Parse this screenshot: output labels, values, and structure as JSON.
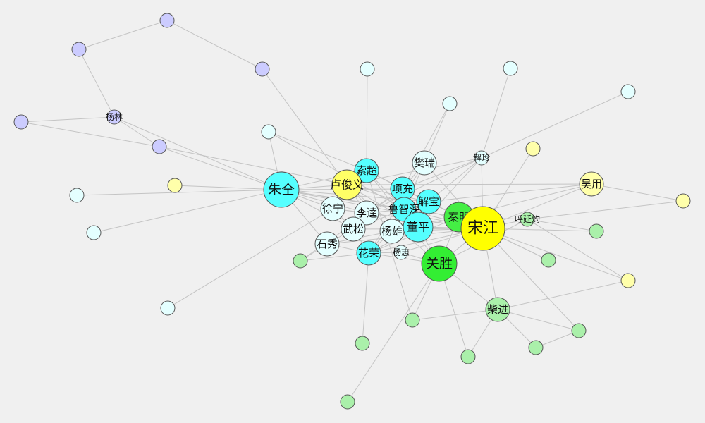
{
  "graph": {
    "palette": {
      "purple": "#ccccff",
      "cyan-light": "#e4ffff",
      "cyan": "#55ffff",
      "yellow-light": "#ffffaa",
      "yellow": "#ffff66",
      "yellow-strong": "#ffff00",
      "green-light": "#aaf0aa",
      "green": "#44ee44",
      "green-strong": "#33ee33"
    },
    "nodes": [
      {
        "id": "p1",
        "label": "",
        "color": "purple",
        "level": 1
      },
      {
        "id": "p2",
        "label": "",
        "color": "purple",
        "level": 1
      },
      {
        "id": "p3",
        "label": "",
        "color": "purple",
        "level": 1
      },
      {
        "id": "p4",
        "label": "",
        "color": "purple",
        "level": 1
      },
      {
        "id": "yanglin",
        "label": "杨林",
        "color": "purple",
        "level": 1
      },
      {
        "id": "p5",
        "label": "",
        "color": "purple",
        "level": 1
      },
      {
        "id": "c1",
        "label": "",
        "color": "cyan-light",
        "level": 1
      },
      {
        "id": "c2",
        "label": "",
        "color": "cyan-light",
        "level": 1
      },
      {
        "id": "c3",
        "label": "",
        "color": "cyan-light",
        "level": 1
      },
      {
        "id": "c4",
        "label": "",
        "color": "cyan-light",
        "level": 1
      },
      {
        "id": "c5",
        "label": "",
        "color": "cyan-light",
        "level": 1
      },
      {
        "id": "c6",
        "label": "",
        "color": "cyan-light",
        "level": 1
      },
      {
        "id": "c7",
        "label": "",
        "color": "cyan-light",
        "level": 1
      },
      {
        "id": "c8",
        "label": "",
        "color": "cyan-light",
        "level": 1
      },
      {
        "id": "y1",
        "label": "",
        "color": "yellow-light",
        "level": 1
      },
      {
        "id": "y2",
        "label": "",
        "color": "yellow-light",
        "level": 1
      },
      {
        "id": "y3",
        "label": "",
        "color": "yellow-light",
        "level": 1
      },
      {
        "id": "y4",
        "label": "",
        "color": "yellow-light",
        "level": 1
      },
      {
        "id": "g1",
        "label": "",
        "color": "green-light",
        "level": 1
      },
      {
        "id": "g2",
        "label": "",
        "color": "green-light",
        "level": 1
      },
      {
        "id": "g3",
        "label": "",
        "color": "green-light",
        "level": 1
      },
      {
        "id": "g4",
        "label": "",
        "color": "green-light",
        "level": 1
      },
      {
        "id": "g5",
        "label": "",
        "color": "green-light",
        "level": 1
      },
      {
        "id": "g6",
        "label": "",
        "color": "green-light",
        "level": 1
      },
      {
        "id": "g7",
        "label": "",
        "color": "green-light",
        "level": 1
      },
      {
        "id": "g8",
        "label": "",
        "color": "green-light",
        "level": 1
      },
      {
        "id": "g9",
        "label": "",
        "color": "green-light",
        "level": 1
      },
      {
        "id": "zhuquan",
        "label": "朱仝",
        "color": "cyan",
        "level": 4
      },
      {
        "id": "lujunyi",
        "label": "卢俊义",
        "color": "yellow",
        "level": 3
      },
      {
        "id": "suochao",
        "label": "索超",
        "color": "cyan",
        "level": 2
      },
      {
        "id": "fanrui",
        "label": "樊瑞",
        "color": "cyan-light",
        "level": 2
      },
      {
        "id": "xiezhen",
        "label": "解珍",
        "color": "cyan-light",
        "level": 1
      },
      {
        "id": "wuyong",
        "label": "吴用",
        "color": "yellow-light",
        "level": 2
      },
      {
        "id": "xiangchong",
        "label": "项充",
        "color": "cyan",
        "level": 2
      },
      {
        "id": "xiebao",
        "label": "解宝",
        "color": "cyan",
        "level": 2
      },
      {
        "id": "xuning",
        "label": "徐宁",
        "color": "cyan-light",
        "level": 2
      },
      {
        "id": "likui",
        "label": "李逵",
        "color": "cyan-light",
        "level": 2
      },
      {
        "id": "luzhishen",
        "label": "鲁智深",
        "color": "cyan",
        "level": 2
      },
      {
        "id": "qinming",
        "label": "秦明",
        "color": "green",
        "level": 3
      },
      {
        "id": "songjiang",
        "label": "宋江",
        "color": "yellow-strong",
        "level": 5
      },
      {
        "id": "huyanzhuo",
        "label": "呼延灼",
        "color": "green-light",
        "level": 1
      },
      {
        "id": "wusong",
        "label": "武松",
        "color": "cyan-light",
        "level": 2
      },
      {
        "id": "yangxiong",
        "label": "杨雄",
        "color": "cyan-light",
        "level": 2
      },
      {
        "id": "dongping",
        "label": "董平",
        "color": "cyan",
        "level": 3
      },
      {
        "id": "shixiu",
        "label": "石秀",
        "color": "cyan-light",
        "level": 2
      },
      {
        "id": "huarong",
        "label": "花荣",
        "color": "cyan",
        "level": 2
      },
      {
        "id": "yangzhi",
        "label": "杨志",
        "color": "cyan-light",
        "level": 1
      },
      {
        "id": "guansheng",
        "label": "关胜",
        "color": "green-strong",
        "level": 4
      },
      {
        "id": "chaijin",
        "label": "柴进",
        "color": "green-light",
        "level": 2
      }
    ],
    "edges": [
      [
        "p1",
        "p2"
      ],
      [
        "p1",
        "p3"
      ],
      [
        "p2",
        "yanglin"
      ],
      [
        "p3",
        "lujunyi"
      ],
      [
        "p4",
        "yanglin"
      ],
      [
        "p4",
        "p5"
      ],
      [
        "yanglin",
        "p5"
      ],
      [
        "yanglin",
        "zhuquan"
      ],
      [
        "p5",
        "zhuquan"
      ],
      [
        "p5",
        "lujunyi"
      ],
      [
        "c1",
        "zhuquan"
      ],
      [
        "c1",
        "luzhishen"
      ],
      [
        "c1",
        "suochao"
      ],
      [
        "c2",
        "suochao"
      ],
      [
        "c3",
        "fanrui"
      ],
      [
        "c3",
        "xiangchong"
      ],
      [
        "c4",
        "xiezhen"
      ],
      [
        "c5",
        "xiezhen"
      ],
      [
        "c6",
        "zhuquan"
      ],
      [
        "c7",
        "zhuquan"
      ],
      [
        "c8",
        "xuning"
      ],
      [
        "y1",
        "zhuquan"
      ],
      [
        "y2",
        "songjiang"
      ],
      [
        "y3",
        "wuyong"
      ],
      [
        "y3",
        "huyanzhuo"
      ],
      [
        "y4",
        "chaijin"
      ],
      [
        "y4",
        "songjiang"
      ],
      [
        "y4",
        "huyanzhuo"
      ],
      [
        "g1",
        "xiangchong"
      ],
      [
        "g1",
        "huarong"
      ],
      [
        "g2",
        "songjiang"
      ],
      [
        "g2",
        "huyanzhuo"
      ],
      [
        "g3",
        "songjiang"
      ],
      [
        "g3",
        "qinming"
      ],
      [
        "g4",
        "suochao"
      ],
      [
        "g4",
        "guansheng"
      ],
      [
        "g4",
        "chaijin"
      ],
      [
        "g5",
        "huarong"
      ],
      [
        "g6",
        "chaijin"
      ],
      [
        "g6",
        "guansheng"
      ],
      [
        "g7",
        "chaijin"
      ],
      [
        "g7",
        "songjiang"
      ],
      [
        "g8",
        "chaijin"
      ],
      [
        "g8",
        "g7"
      ],
      [
        "g9",
        "guansheng"
      ],
      [
        "zhuquan",
        "lujunyi"
      ],
      [
        "zhuquan",
        "suochao"
      ],
      [
        "zhuquan",
        "xuning"
      ],
      [
        "zhuquan",
        "likui"
      ],
      [
        "zhuquan",
        "luzhishen"
      ],
      [
        "zhuquan",
        "xiangchong"
      ],
      [
        "zhuquan",
        "wusong"
      ],
      [
        "zhuquan",
        "shixiu"
      ],
      [
        "zhuquan",
        "xiebao"
      ],
      [
        "zhuquan",
        "songjiang"
      ],
      [
        "zhuquan",
        "qinming"
      ],
      [
        "lujunyi",
        "songjiang"
      ],
      [
        "lujunyi",
        "xiebao"
      ],
      [
        "lujunyi",
        "wuyong"
      ],
      [
        "lujunyi",
        "xiezhen"
      ],
      [
        "lujunyi",
        "likui"
      ],
      [
        "lujunyi",
        "dongping"
      ],
      [
        "lujunyi",
        "guansheng"
      ],
      [
        "lujunyi",
        "yangxiong"
      ],
      [
        "suochao",
        "xiangchong"
      ],
      [
        "suochao",
        "xiebao"
      ],
      [
        "suochao",
        "guansheng"
      ],
      [
        "suochao",
        "luzhishen"
      ],
      [
        "suochao",
        "songjiang"
      ],
      [
        "fanrui",
        "songjiang"
      ],
      [
        "fanrui",
        "xiangchong"
      ],
      [
        "fanrui",
        "huarong"
      ],
      [
        "fanrui",
        "luzhishen"
      ],
      [
        "xiezhen",
        "songjiang"
      ],
      [
        "xiezhen",
        "xiebao"
      ],
      [
        "xiezhen",
        "xiangchong"
      ],
      [
        "xiezhen",
        "dongping"
      ],
      [
        "xiezhen",
        "likui"
      ],
      [
        "wuyong",
        "songjiang"
      ],
      [
        "wuyong",
        "qinming"
      ],
      [
        "wuyong",
        "xiebao"
      ],
      [
        "xiangchong",
        "songjiang"
      ],
      [
        "xiangchong",
        "xiebao"
      ],
      [
        "xiangchong",
        "likui"
      ],
      [
        "xiebao",
        "songjiang"
      ],
      [
        "xiebao",
        "qinming"
      ],
      [
        "xuning",
        "likui"
      ],
      [
        "xuning",
        "wusong"
      ],
      [
        "xuning",
        "songjiang"
      ],
      [
        "likui",
        "luzhishen"
      ],
      [
        "likui",
        "wusong"
      ],
      [
        "likui",
        "songjiang"
      ],
      [
        "luzhishen",
        "wusong"
      ],
      [
        "luzhishen",
        "yangxiong"
      ],
      [
        "luzhishen",
        "songjiang"
      ],
      [
        "luzhishen",
        "dongping"
      ],
      [
        "luzhishen",
        "huarong"
      ],
      [
        "qinming",
        "songjiang"
      ],
      [
        "qinming",
        "huarong"
      ],
      [
        "qinming",
        "guansheng"
      ],
      [
        "qinming",
        "dongping"
      ],
      [
        "qinming",
        "huyanzhuo"
      ],
      [
        "songjiang",
        "huyanzhuo"
      ],
      [
        "songjiang",
        "guansheng"
      ],
      [
        "songjiang",
        "chaijin"
      ],
      [
        "songjiang",
        "huarong"
      ],
      [
        "songjiang",
        "dongping"
      ],
      [
        "songjiang",
        "yangzhi"
      ],
      [
        "songjiang",
        "shixiu"
      ],
      [
        "songjiang",
        "yangxiong"
      ],
      [
        "songjiang",
        "wusong"
      ],
      [
        "huyanzhuo",
        "guansheng"
      ],
      [
        "wusong",
        "shixiu"
      ],
      [
        "wusong",
        "huarong"
      ],
      [
        "yangxiong",
        "shixiu"
      ],
      [
        "yangxiong",
        "huarong"
      ],
      [
        "yangxiong",
        "dongping"
      ],
      [
        "dongping",
        "huarong"
      ],
      [
        "dongping",
        "guansheng"
      ],
      [
        "shixiu",
        "huarong"
      ],
      [
        "huarong",
        "guansheng"
      ],
      [
        "huarong",
        "yangzhi"
      ],
      [
        "yangzhi",
        "guansheng"
      ],
      [
        "guansheng",
        "chaijin"
      ],
      [
        "shixiu",
        "g1"
      ]
    ]
  }
}
